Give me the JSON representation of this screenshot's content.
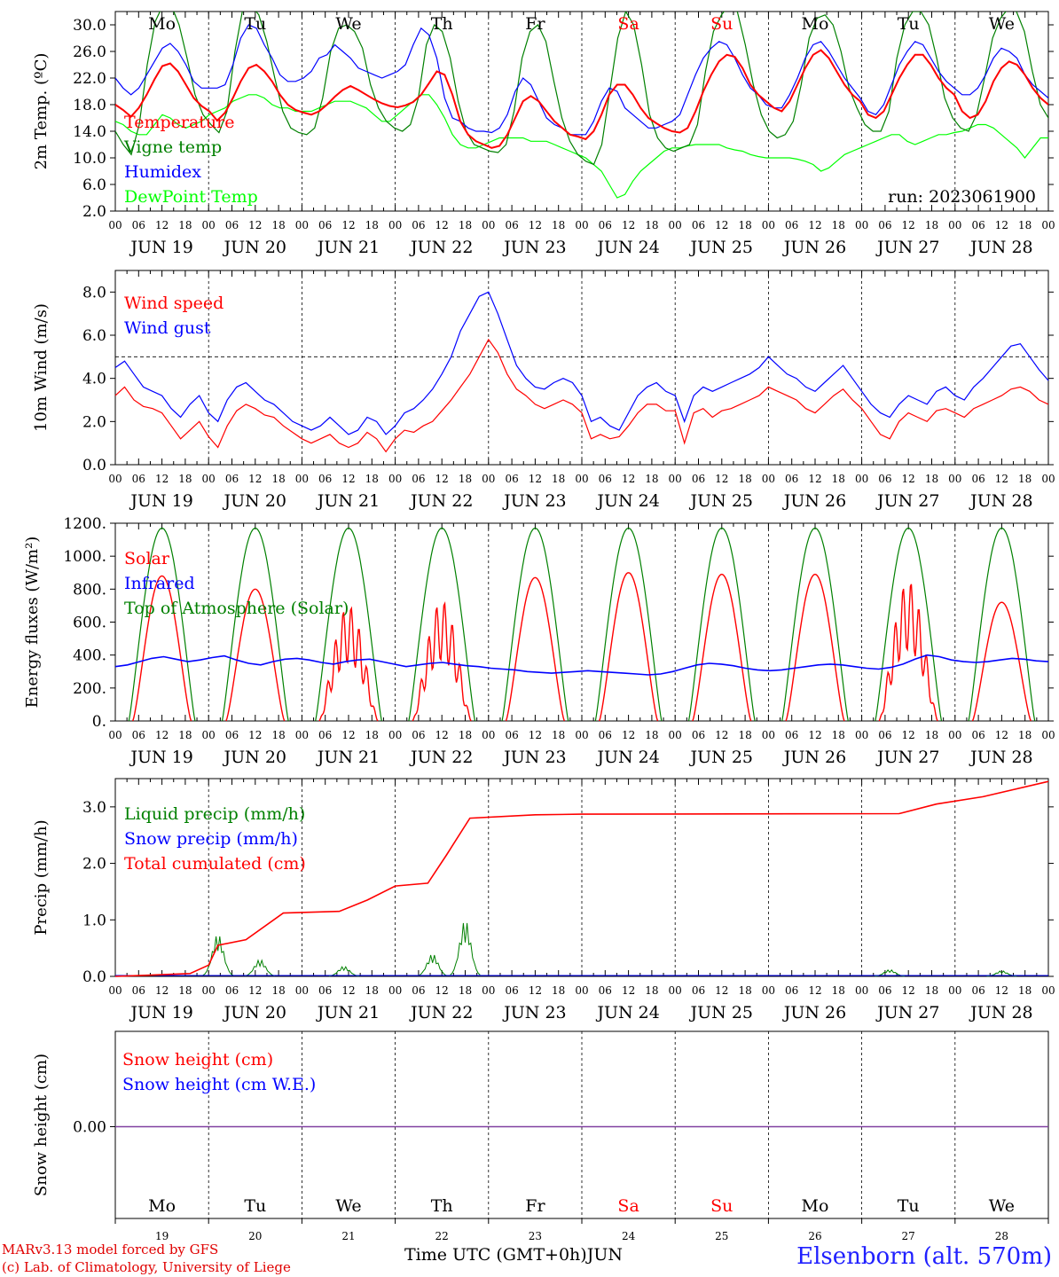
{
  "chart_data": [
    {
      "type": "line",
      "ylabel": "2m Temp. (ºC)",
      "ylim": [
        2.0,
        32.0
      ],
      "yticks": [
        "2.0",
        "6.0",
        "10.0",
        "14.0",
        "18.0",
        "22.0",
        "26.0",
        "30.0"
      ],
      "annotation": "run: 2023061900",
      "series": [
        {
          "name": "Temperature",
          "color": "#ff0000",
          "values": [
            18.0,
            17.2,
            16.2,
            17.5,
            19.5,
            21.8,
            23.8,
            24.2,
            23.0,
            21.0,
            19.0,
            17.8,
            17.0,
            15.6,
            16.8,
            19.0,
            21.5,
            23.5,
            24.0,
            23.0,
            21.5,
            19.5,
            18.0,
            17.2,
            16.8,
            16.5,
            17.0,
            18.0,
            19.2,
            20.2,
            20.8,
            20.2,
            19.5,
            18.8,
            18.2,
            17.8,
            17.6,
            17.9,
            18.4,
            19.5,
            21.2,
            23.0,
            22.5,
            19.5,
            15.5,
            13.5,
            12.5,
            12.0,
            11.5,
            11.8,
            13.5,
            16.0,
            18.5,
            19.3,
            18.5,
            17.0,
            15.5,
            14.5,
            13.5,
            13.2,
            12.8,
            14.0,
            16.5,
            19.5,
            21.0,
            21.0,
            19.5,
            17.5,
            16.0,
            15.2,
            14.5,
            14.0,
            13.8,
            14.5,
            17.0,
            20.0,
            22.5,
            24.5,
            25.5,
            25.2,
            23.5,
            21.0,
            19.5,
            18.5,
            17.5,
            17.0,
            18.5,
            21.0,
            23.5,
            25.5,
            26.2,
            25.0,
            23.0,
            21.0,
            19.5,
            18.5,
            16.5,
            16.0,
            17.0,
            19.5,
            22.0,
            24.0,
            25.5,
            25.5,
            24.0,
            22.0,
            20.5,
            19.5,
            17.0,
            16.0,
            16.5,
            18.5,
            21.5,
            23.5,
            24.5,
            24.0,
            22.5,
            20.5,
            19.0,
            18.0
          ]
        },
        {
          "name": "Vigne temp",
          "color": "#008000",
          "values": [
            14.0,
            12.0,
            10.5,
            15.0,
            24.0,
            30.5,
            33.0,
            33.0,
            30.0,
            25.0,
            19.5,
            16.5,
            15.0,
            13.8,
            17.0,
            26.0,
            32.5,
            33.0,
            31.5,
            27.5,
            22.0,
            17.0,
            14.5,
            13.8,
            13.5,
            14.5,
            19.0,
            26.0,
            29.5,
            30.0,
            29.0,
            26.5,
            21.0,
            17.5,
            15.5,
            14.5,
            14.0,
            15.0,
            19.0,
            27.0,
            30.0,
            29.0,
            25.0,
            18.5,
            14.0,
            12.0,
            11.5,
            11.0,
            10.8,
            12.0,
            17.0,
            25.0,
            29.0,
            30.0,
            27.5,
            21.5,
            16.0,
            12.5,
            10.5,
            9.5,
            9.0,
            12.0,
            20.0,
            28.0,
            32.0,
            30.0,
            24.0,
            16.5,
            13.0,
            11.5,
            11.0,
            11.5,
            12.0,
            15.0,
            23.0,
            29.0,
            31.5,
            33.0,
            32.0,
            27.0,
            21.0,
            16.5,
            14.0,
            13.0,
            13.5,
            15.5,
            21.0,
            28.0,
            31.0,
            31.5,
            30.0,
            26.0,
            20.5,
            17.5,
            15.0,
            14.0,
            14.0,
            17.0,
            25.0,
            30.0,
            32.0,
            32.0,
            30.0,
            25.0,
            19.0,
            16.0,
            14.5,
            14.0,
            16.5,
            22.0,
            28.0,
            31.0,
            32.5,
            32.0,
            29.0,
            23.0,
            18.0,
            16.0
          ]
        },
        {
          "name": "Humidex",
          "color": "#0000ff",
          "values": [
            22.0,
            20.5,
            19.5,
            20.5,
            22.5,
            24.5,
            26.5,
            27.2,
            26.0,
            24.0,
            21.5,
            20.5,
            20.5,
            20.5,
            21.0,
            24.0,
            28.0,
            30.0,
            29.5,
            27.0,
            25.0,
            22.5,
            21.5,
            21.5,
            22.0,
            23.0,
            25.0,
            25.5,
            27.0,
            26.0,
            25.0,
            23.5,
            23.0,
            22.5,
            22.0,
            22.5,
            23.0,
            24.0,
            27.0,
            29.5,
            28.5,
            25.0,
            19.0,
            16.0,
            15.5,
            14.5,
            14.0,
            14.0,
            13.8,
            14.5,
            16.5,
            20.0,
            22.0,
            21.0,
            18.5,
            16.0,
            15.0,
            14.5,
            13.5,
            13.5,
            13.5,
            15.5,
            18.5,
            20.5,
            20.0,
            17.5,
            16.5,
            15.5,
            14.5,
            14.5,
            15.0,
            15.5,
            16.5,
            19.5,
            22.5,
            25.0,
            26.5,
            27.5,
            27.0,
            25.0,
            22.5,
            20.5,
            19.5,
            18.0,
            17.5,
            17.5,
            19.5,
            22.0,
            25.0,
            27.0,
            27.5,
            26.0,
            24.0,
            22.0,
            20.5,
            19.0,
            17.0,
            16.5,
            18.0,
            21.0,
            24.0,
            26.0,
            27.5,
            27.0,
            25.0,
            23.0,
            21.5,
            20.5,
            19.5,
            19.5,
            20.5,
            22.5,
            25.0,
            26.5,
            26.0,
            25.0,
            22.5,
            21.0,
            20.0,
            19.0
          ]
        },
        {
          "name": "DewPoint Temp",
          "color": "#00ff00",
          "values": [
            15.5,
            15.0,
            14.0,
            13.5,
            13.5,
            15.0,
            16.5,
            16.0,
            15.0,
            14.5,
            15.0,
            15.5,
            16.5,
            17.0,
            17.5,
            18.5,
            19.0,
            19.5,
            19.5,
            19.0,
            18.0,
            17.5,
            17.5,
            17.0,
            17.0,
            17.0,
            17.5,
            18.0,
            18.5,
            18.5,
            18.5,
            18.0,
            17.5,
            16.5,
            15.5,
            15.5,
            16.5,
            17.5,
            18.5,
            19.5,
            19.5,
            18.0,
            16.0,
            13.5,
            12.0,
            11.5,
            11.5,
            12.0,
            12.5,
            13.0,
            13.0,
            13.0,
            13.0,
            12.5,
            12.5,
            12.5,
            12.0,
            11.5,
            11.0,
            10.5,
            10.0,
            9.0,
            8.0,
            6.0,
            4.0,
            4.5,
            6.5,
            8.0,
            9.0,
            10.0,
            11.0,
            11.5,
            11.5,
            11.8,
            12.0,
            12.0,
            12.0,
            12.0,
            11.5,
            11.2,
            11.0,
            10.5,
            10.2,
            10.0,
            10.0,
            10.0,
            10.0,
            9.8,
            9.5,
            9.0,
            8.0,
            8.5,
            9.5,
            10.5,
            11.0,
            11.5,
            12.0,
            12.5,
            13.0,
            13.5,
            13.5,
            12.5,
            12.0,
            12.5,
            13.0,
            13.5,
            13.5,
            13.8,
            14.0,
            14.5,
            15.0,
            15.0,
            14.5,
            13.5,
            12.5,
            11.5,
            10.0,
            11.5,
            13.0,
            13.0
          ]
        }
      ]
    },
    {
      "type": "line",
      "ylabel": "10m Wind (m/s)",
      "ylim": [
        0.0,
        9.0
      ],
      "yticks": [
        "0.0",
        "2.0",
        "4.0",
        "6.0",
        "8.0"
      ],
      "series": [
        {
          "name": "Wind speed",
          "color": "#ff0000",
          "values": [
            3.2,
            3.6,
            3.0,
            2.7,
            2.6,
            2.4,
            1.8,
            1.2,
            1.6,
            2.0,
            1.3,
            0.8,
            1.8,
            2.5,
            2.8,
            2.6,
            2.3,
            2.2,
            1.8,
            1.5,
            1.2,
            1.0,
            1.2,
            1.4,
            1.0,
            0.8,
            1.0,
            1.5,
            1.2,
            0.6,
            1.2,
            1.6,
            1.5,
            1.8,
            2.0,
            2.5,
            3.0,
            3.6,
            4.2,
            5.0,
            5.8,
            5.2,
            4.2,
            3.5,
            3.2,
            2.8,
            2.6,
            2.8,
            3.0,
            2.8,
            2.4,
            1.2,
            1.4,
            1.2,
            1.3,
            1.8,
            2.4,
            2.8,
            2.8,
            2.5,
            2.5,
            1.0,
            2.4,
            2.6,
            2.2,
            2.5,
            2.6,
            2.8,
            3.0,
            3.2,
            3.6,
            3.4,
            3.2,
            3.0,
            2.6,
            2.4,
            2.8,
            3.2,
            3.5,
            3.0,
            2.6,
            2.0,
            1.4,
            1.2,
            2.0,
            2.4,
            2.2,
            2.0,
            2.5,
            2.6,
            2.4,
            2.2,
            2.6,
            2.8,
            3.0,
            3.2,
            3.5,
            3.6,
            3.4,
            3.0,
            2.8
          ]
        },
        {
          "name": "Wind gust",
          "color": "#0000ff",
          "values": [
            4.5,
            4.8,
            4.2,
            3.6,
            3.4,
            3.2,
            2.6,
            2.2,
            2.8,
            3.2,
            2.4,
            2.0,
            3.0,
            3.6,
            3.8,
            3.4,
            3.0,
            2.8,
            2.4,
            2.0,
            1.8,
            1.6,
            1.8,
            2.2,
            1.8,
            1.4,
            1.6,
            2.2,
            2.0,
            1.4,
            1.8,
            2.4,
            2.6,
            3.0,
            3.5,
            4.2,
            5.0,
            6.2,
            7.0,
            7.8,
            8.0,
            7.0,
            5.8,
            4.6,
            4.0,
            3.6,
            3.5,
            3.8,
            4.0,
            3.8,
            3.2,
            2.0,
            2.2,
            1.8,
            1.6,
            2.4,
            3.2,
            3.6,
            3.8,
            3.4,
            3.2,
            2.0,
            3.2,
            3.6,
            3.4,
            3.6,
            3.8,
            4.0,
            4.2,
            4.5,
            5.0,
            4.6,
            4.2,
            4.0,
            3.6,
            3.4,
            3.8,
            4.2,
            4.6,
            4.0,
            3.4,
            2.8,
            2.4,
            2.2,
            2.8,
            3.2,
            3.0,
            2.8,
            3.4,
            3.6,
            3.2,
            3.0,
            3.6,
            4.0,
            4.5,
            5.0,
            5.5,
            5.6,
            5.0,
            4.4,
            3.9
          ]
        }
      ]
    },
    {
      "type": "line",
      "ylabel": "Energy fluxes (W/m²)",
      "ylim": [
        0,
        1200
      ],
      "yticks": [
        "0.",
        "200.",
        "400.",
        "600.",
        "800.",
        "1000.",
        "1200."
      ],
      "series": [
        {
          "name": "Solar",
          "color": "#ff0000",
          "peaks": [
            880,
            800,
            700,
            730,
            870,
            900,
            890,
            890,
            850,
            720
          ]
        },
        {
          "name": "Infrared",
          "color": "#0000ff",
          "values": [
            330,
            340,
            360,
            380,
            390,
            375,
            360,
            370,
            385,
            395,
            370,
            350,
            340,
            360,
            375,
            380,
            370,
            355,
            345,
            360,
            370,
            375,
            360,
            345,
            330,
            340,
            350,
            355,
            345,
            335,
            330,
            320,
            315,
            310,
            300,
            295,
            290,
            295,
            300,
            305,
            300,
            295,
            290,
            285,
            280,
            285,
            300,
            320,
            340,
            350,
            345,
            335,
            320,
            310,
            305,
            310,
            320,
            330,
            340,
            345,
            340,
            330,
            320,
            315,
            325,
            345,
            375,
            400,
            390,
            370,
            360,
            355,
            360,
            370,
            380,
            375,
            365,
            360
          ]
        },
        {
          "name": "Top of Atmosphere (Solar)",
          "color": "#008000",
          "peak": 1170
        }
      ]
    },
    {
      "type": "line",
      "ylabel": "Precip (mm/h)",
      "ylim": [
        0.0,
        3.5
      ],
      "yticks": [
        "0.0",
        "1.0",
        "2.0",
        "3.0"
      ],
      "series": [
        {
          "name": "Liquid precip (mm/h)",
          "color": "#008000",
          "bursts": [
            {
              "day": 1.1,
              "h": 0.75
            },
            {
              "day": 1.55,
              "h": 0.3
            },
            {
              "day": 2.45,
              "h": 0.18
            },
            {
              "day": 3.4,
              "h": 0.4
            },
            {
              "day": 3.75,
              "h": 1.0
            },
            {
              "day": 8.3,
              "h": 0.12
            },
            {
              "day": 9.5,
              "h": 0.1
            }
          ]
        },
        {
          "name": "Snow precip (mm/h)",
          "color": "#0000ff"
        },
        {
          "name": "Total cumulated (cm)",
          "color": "#ff0000",
          "points": [
            [
              0,
              0
            ],
            [
              0.35,
              0.02
            ],
            [
              0.8,
              0.05
            ],
            [
              1.0,
              0.2
            ],
            [
              1.1,
              0.55
            ],
            [
              1.4,
              0.65
            ],
            [
              1.8,
              1.12
            ],
            [
              2.4,
              1.15
            ],
            [
              2.7,
              1.35
            ],
            [
              3.0,
              1.6
            ],
            [
              3.35,
              1.65
            ],
            [
              3.55,
              2.15
            ],
            [
              3.8,
              2.8
            ],
            [
              4.5,
              2.86
            ],
            [
              5.0,
              2.87
            ],
            [
              8.4,
              2.88
            ],
            [
              8.8,
              3.05
            ],
            [
              9.3,
              3.18
            ],
            [
              10.0,
              3.45
            ]
          ]
        }
      ]
    },
    {
      "type": "line",
      "ylabel": "Snow height (cm)",
      "yticks": [
        "0.00"
      ],
      "series": [
        {
          "name": "Snow height (cm)",
          "color": "#ff0000"
        },
        {
          "name": "Snow height (cm W.E.)",
          "color": "#0000ff"
        }
      ]
    }
  ],
  "x_axis": {
    "hour_ticks": [
      "00",
      "06",
      "12",
      "18"
    ],
    "dates": [
      "JUN 19",
      "JUN 20",
      "JUN 21",
      "JUN 22",
      "JUN 23",
      "JUN 24",
      "JUN 25",
      "JUN 26",
      "JUN 27",
      "JUN 28"
    ],
    "weekdays": [
      "Mo",
      "Tu",
      "We",
      "Th",
      "Fr",
      "Sa",
      "Su",
      "Mo",
      "Tu",
      "We"
    ],
    "weekday_colors": [
      "#000000",
      "#000000",
      "#000000",
      "#000000",
      "#000000",
      "#ff0000",
      "#ff0000",
      "#000000",
      "#000000",
      "#000000"
    ],
    "day_numbers": [
      "19",
      "20",
      "21",
      "22",
      "23",
      "24",
      "25",
      "26",
      "27",
      "28"
    ],
    "xlabel": "Time UTC (GMT+0h)",
    "month": "JUN"
  },
  "footer": {
    "credit_line1": "MARv3.13 model forced by GFS",
    "credit_line2": "(c) Lab. of Climatology, University of Liege",
    "station": "Elsenborn (alt. 570m)"
  }
}
